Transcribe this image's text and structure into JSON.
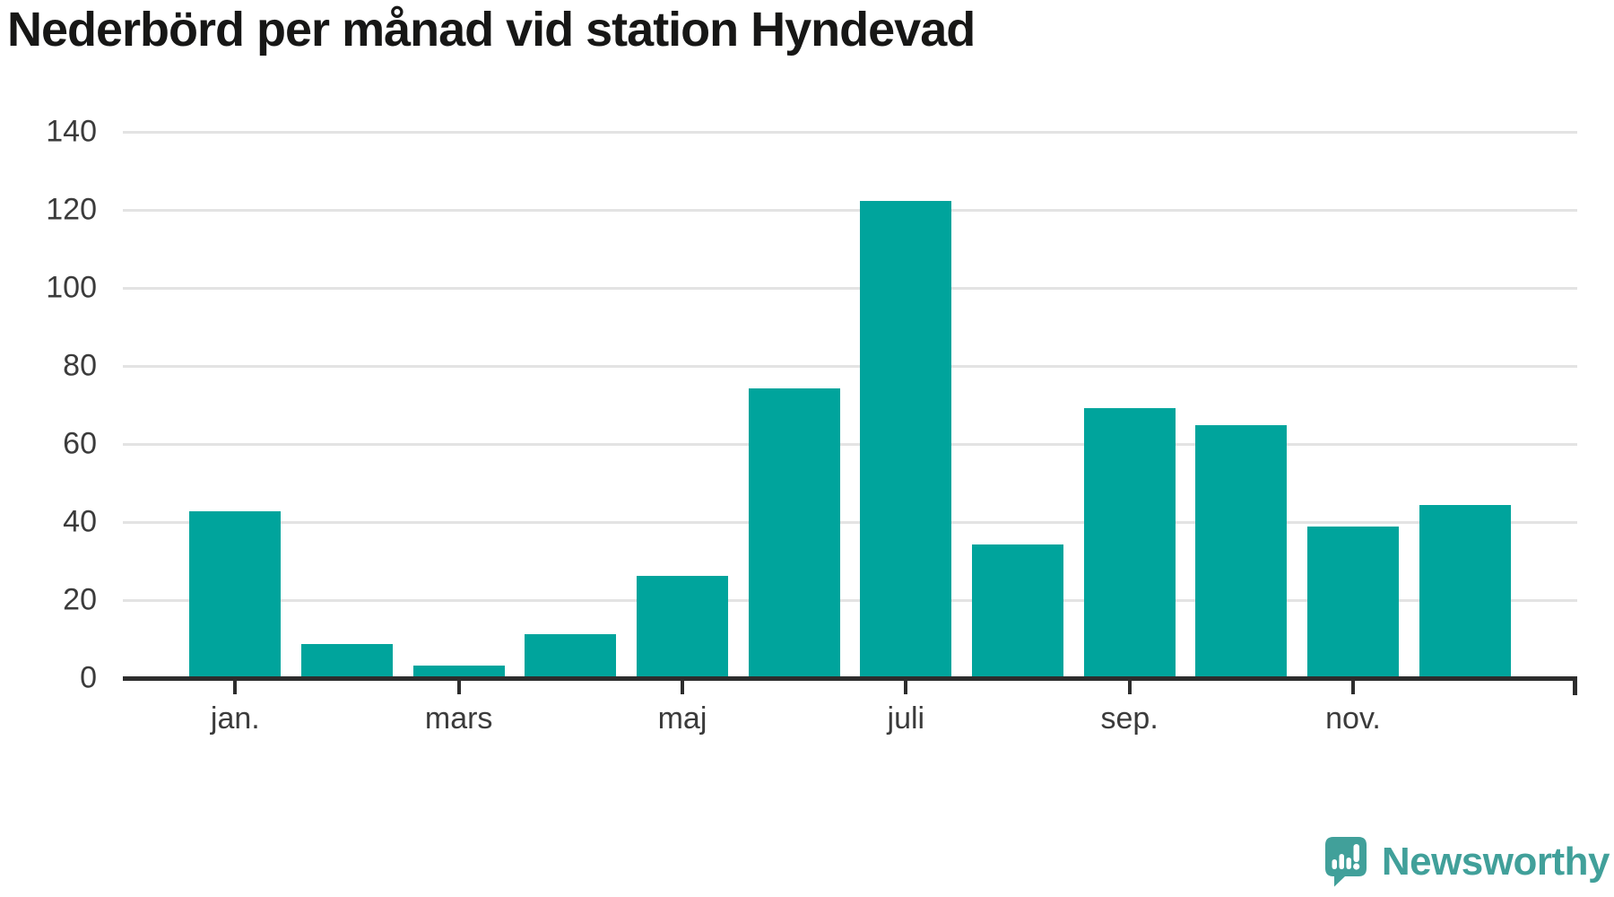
{
  "header": {
    "title": "Nederbörd per månad vid station Hyndevad"
  },
  "chart_data": {
    "type": "bar",
    "title": "Nederbörd per månad vid station Hyndevad",
    "values": [
      43,
      9,
      3.5,
      11.5,
      26.5,
      74.5,
      122.5,
      34.5,
      69.5,
      65,
      39,
      44.5
    ],
    "bar_count": 12,
    "x_tick_labels": [
      "jan.",
      "mars",
      "maj",
      "juli",
      "sep.",
      "nov."
    ],
    "x_tick_bar_indexes": [
      0,
      2,
      4,
      6,
      8,
      10
    ],
    "y_ticks": [
      0,
      20,
      40,
      60,
      80,
      100,
      120,
      140
    ],
    "ylim": [
      0,
      140
    ],
    "grid": "horizontal",
    "legend": "none",
    "colors": {
      "bar": "#00a49c",
      "gridline": "#e3e3e3",
      "axis": "#2d2d2d",
      "tick_label": "#3b3b3b",
      "title": "#171716"
    }
  },
  "branding": {
    "logo_text": "Newsworthy",
    "logo_icon": "speech-bubble-bar-chart-exclamation-icon",
    "logo_color": "#41a09a"
  }
}
